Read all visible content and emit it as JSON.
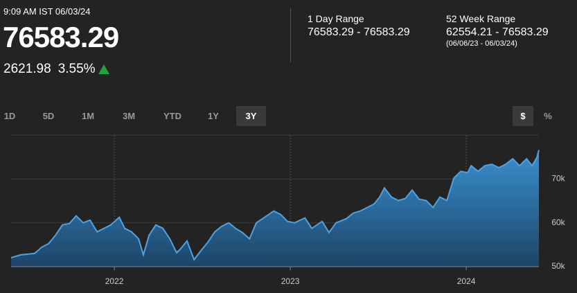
{
  "header": {
    "timestamp": "9:09 AM IST 06/03/24",
    "price": "76583.29",
    "change": "2621.98",
    "change_pct": "3.55%"
  },
  "ranges": [
    {
      "label": "1 Day Range",
      "value": "76583.29 - 76583.29"
    },
    {
      "label": "52 Week Range",
      "value": "62554.21 - 76583.29",
      "note": "(06/06/23 - 06/03/24)"
    }
  ],
  "tabs": [
    "1D",
    "5D",
    "1M",
    "3M",
    "YTD",
    "1Y",
    "3Y"
  ],
  "active_tab": 6,
  "units": [
    "$",
    "%"
  ],
  "active_unit": 0,
  "chart_data": {
    "type": "area",
    "color": "#4ba3e3",
    "x": [
      2021.413,
      2021.469,
      2021.547,
      2021.587,
      2021.626,
      2021.665,
      2021.705,
      2021.744,
      2021.783,
      2021.823,
      2021.862,
      2021.902,
      2021.941,
      2021.98,
      2022.028,
      2022.059,
      2022.098,
      2022.138,
      2022.165,
      2022.197,
      2022.236,
      2022.276,
      2022.315,
      2022.354,
      2022.374,
      2022.413,
      2022.453,
      2022.492,
      2022.531,
      2022.571,
      2022.61,
      2022.65,
      2022.689,
      2022.728,
      2022.768,
      2022.807,
      2022.866,
      2022.906,
      2022.945,
      2022.984,
      2023.024,
      2023.083,
      2023.122,
      2023.181,
      2023.22,
      2023.26,
      2023.319,
      2023.358,
      2023.398,
      2023.437,
      2023.476,
      2023.508,
      2023.535,
      2023.575,
      2023.614,
      2023.654,
      2023.693,
      2023.732,
      2023.772,
      2023.811,
      2023.85,
      2023.89,
      2023.929,
      2023.969,
      2024.008,
      2024.028,
      2024.067,
      2024.106,
      2024.146,
      2024.185,
      2024.224,
      2024.264,
      2024.303,
      2024.343,
      2024.374,
      2024.402,
      2024.413
    ],
    "values": [
      52060,
      52700,
      53020,
      54440,
      55240,
      57140,
      59520,
      59840,
      61590,
      60000,
      60630,
      57940,
      58730,
      59520,
      61270,
      58730,
      57940,
      56350,
      52700,
      57140,
      59520,
      58730,
      56350,
      53170,
      53970,
      55870,
      51590,
      53650,
      55560,
      57940,
      59210,
      60000,
      58730,
      57780,
      56350,
      60000,
      61590,
      62700,
      61900,
      60320,
      60000,
      61110,
      58730,
      60320,
      57780,
      60000,
      60950,
      62220,
      62700,
      63490,
      64290,
      65870,
      67940,
      65870,
      65080,
      65560,
      67460,
      65400,
      65080,
      63490,
      65870,
      65080,
      70160,
      71750,
      71430,
      73020,
      71750,
      73020,
      73330,
      72540,
      73330,
      74600,
      73020,
      74600,
      73020,
      74920,
      76583.29
    ],
    "xlim": [
      2021.413,
      2024.413
    ],
    "ylim": [
      50000,
      80000
    ],
    "xticks": [
      2022,
      2023,
      2024
    ],
    "yticks": [
      {
        "value": 50000,
        "label": "50k"
      },
      {
        "value": 60000,
        "label": "60k"
      },
      {
        "value": 70000,
        "label": "70k"
      }
    ],
    "grid": true
  }
}
